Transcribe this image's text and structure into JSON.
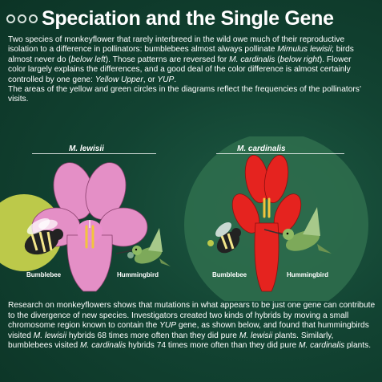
{
  "header": {
    "title": "Speciation and the Single Gene"
  },
  "intro": {
    "t1": "Two species of monkeyflower that rarely interbreed in the wild owe much of their reproductive isolation to a difference in pollinators: bumblebees almost always pollinate ",
    "t2": "Mimulus lewisii",
    "t3": "; birds almost never do (",
    "t4": "below left",
    "t5": "). Those patterns are reversed for ",
    "t6": "M. cardinalis",
    "t7": " (",
    "t8": "below right",
    "t9": "). Flower color largely explains the differences, and a good deal of the color difference is almost certainly controlled by one gene: ",
    "t10": "Yellow Upper",
    "t11": ", or ",
    "t12": "YUP",
    "t13": ".",
    "t14": "The areas of the yellow and green circles in the diagrams reflect the frequencies of the pollinators’ visits."
  },
  "diagram": {
    "left": {
      "species": "M. lewisii",
      "bee_label": "Bumblebee",
      "bird_label": "Hummingbird",
      "flower_color": "#e48fc6"
    },
    "right": {
      "species": "M. cardinalis",
      "bee_label": "Bumblebee",
      "bird_label": "Hummingbird",
      "flower_color": "#e5231f"
    },
    "colors": {
      "bee_circle": "#bcc94a",
      "bird_circle": "#2f6e4e"
    }
  },
  "body": {
    "b1": "Research on monkeyflowers shows that mutations in what appears to be just one gene can contribute to the divergence of new species. Investigators created two kinds of hybrids by moving a small chromosome region known to contain the ",
    "b2": "YUP",
    "b3": " gene, as shown below, and found that hummingbirds visited ",
    "b4": "M. lewisii",
    "b5": " hybrids 68 times more often than they did pure ",
    "b6": "M. lewisii",
    "b7": " plants. Similarly, bumblebees visited ",
    "b8": "M. cardinalis",
    "b9": " hybrids 74 times more often than they did pure ",
    "b10": "M. cardinalis",
    "b11": " plants."
  }
}
